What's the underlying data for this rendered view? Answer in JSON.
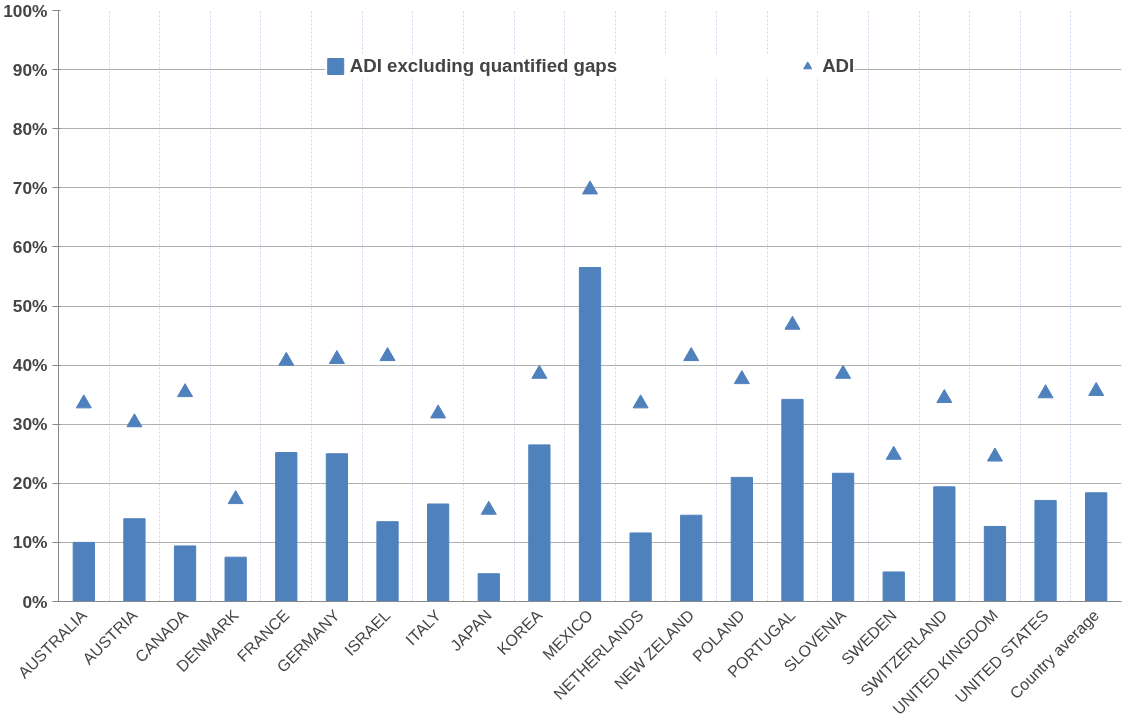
{
  "chart_data": {
    "type": "bar",
    "categories": [
      "AUSTRALIA",
      "AUSTRIA",
      "CANADA",
      "DENMARK",
      "FRANCE",
      "GERMANY",
      "ISRAEL",
      "ITALY",
      "JAPAN",
      "KOREA",
      "MEXICO",
      "NETHERLANDS",
      "NEW ZELAND",
      "POLAND",
      "PORTUGAL",
      "SLOVENIA",
      "SWEDEN",
      "SWITZERLAND",
      "UNITED KINGDOM",
      "UNITED STATES",
      "Country average"
    ],
    "series": [
      {
        "name": "ADI excluding quantified gaps",
        "color": "#4f81bd",
        "values": [
          10,
          14,
          9.4,
          7.5,
          25.2,
          25,
          13.5,
          16.5,
          4.7,
          26.5,
          56.5,
          11.6,
          14.6,
          21,
          34.2,
          21.7,
          5,
          19.4,
          12.7,
          17.1,
          18.4
        ]
      },
      {
        "name": "ADI",
        "type": "scatter",
        "marker": "triangle",
        "color": "#4f81bd",
        "values": [
          33.5,
          30.3,
          35.4,
          17.3,
          40.7,
          41,
          41.5,
          31.8,
          15.5,
          38.5,
          69.7,
          33.5,
          41.5,
          37.6,
          46.8,
          38.5,
          24.8,
          34.4,
          24.5,
          35.2,
          35.6
        ]
      }
    ],
    "ylim": [
      0,
      100
    ],
    "yticks": [
      {
        "value": 0,
        "label": "0%"
      },
      {
        "value": 10,
        "label": "10%"
      },
      {
        "value": 20,
        "label": "20%"
      },
      {
        "value": 30,
        "label": "30%"
      },
      {
        "value": 40,
        "label": "40%"
      },
      {
        "value": 50,
        "label": "50%"
      },
      {
        "value": 60,
        "label": "60%"
      },
      {
        "value": 70,
        "label": "70%"
      },
      {
        "value": 80,
        "label": "80%"
      },
      {
        "value": 90,
        "label": "90%"
      },
      {
        "value": 100,
        "label": "100%"
      }
    ],
    "grid": true,
    "legend": "top"
  }
}
